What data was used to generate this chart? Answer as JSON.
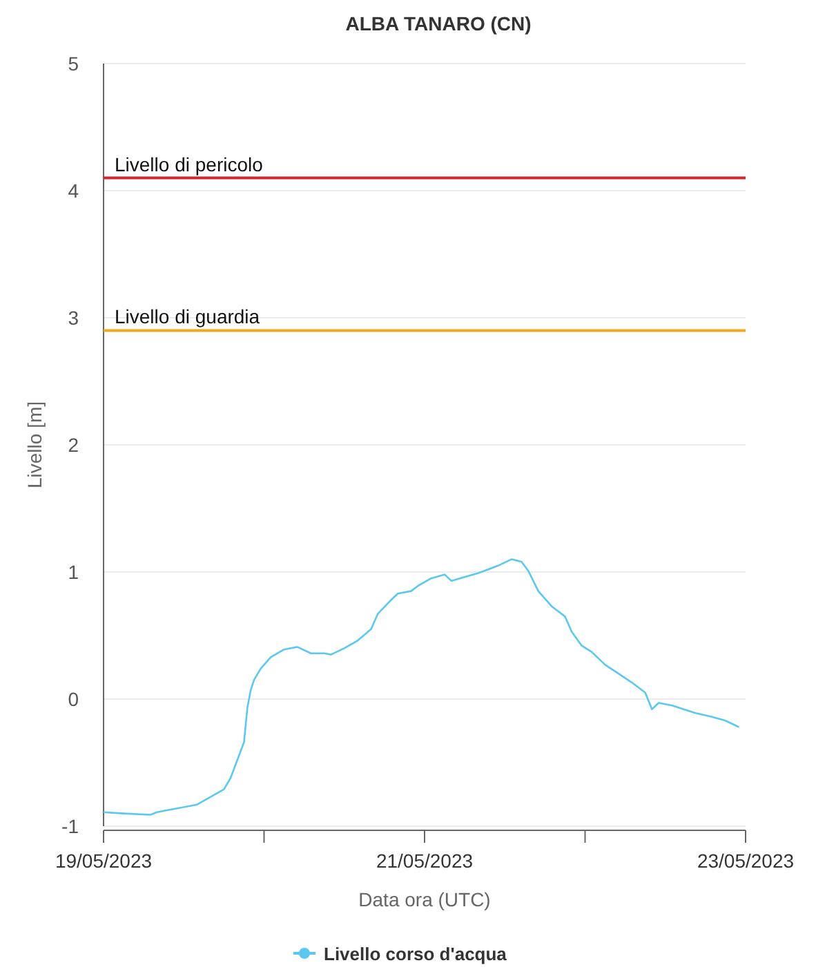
{
  "chart_data": {
    "type": "line",
    "title": "ALBA TANARO (CN)",
    "xlabel": "Data ora (UTC)",
    "ylabel": "Livello [m]",
    "x": [
      "2023-05-19T00:00",
      "2023-05-19T03:00",
      "2023-05-19T07:00",
      "2023-05-19T08:00",
      "2023-05-19T10:00",
      "2023-05-19T14:00",
      "2023-05-19T16:00",
      "2023-05-19T18:00",
      "2023-05-19T19:00",
      "2023-05-19T20:00",
      "2023-05-19T21:00",
      "2023-05-19T21:30",
      "2023-05-19T22:00",
      "2023-05-19T22:30",
      "2023-05-19T23:30",
      "2023-05-20T01:00",
      "2023-05-20T03:00",
      "2023-05-20T05:00",
      "2023-05-20T07:00",
      "2023-05-20T09:00",
      "2023-05-20T10:00",
      "2023-05-20T12:00",
      "2023-05-20T14:00",
      "2023-05-20T16:00",
      "2023-05-20T17:00",
      "2023-05-20T19:00",
      "2023-05-20T20:00",
      "2023-05-20T22:00",
      "2023-05-20T23:00",
      "2023-05-21T01:00",
      "2023-05-21T03:00",
      "2023-05-21T04:00",
      "2023-05-21T06:00",
      "2023-05-21T08:00",
      "2023-05-21T10:00",
      "2023-05-21T11:00",
      "2023-05-21T13:00",
      "2023-05-21T14:30",
      "2023-05-21T15:30",
      "2023-05-21T17:00",
      "2023-05-21T19:00",
      "2023-05-21T21:00",
      "2023-05-21T22:00",
      "2023-05-21T23:30",
      "2023-05-22T01:00",
      "2023-05-22T03:00",
      "2023-05-22T05:00",
      "2023-05-22T07:00",
      "2023-05-22T09:00",
      "2023-05-22T10:00",
      "2023-05-22T11:00",
      "2023-05-22T13:00",
      "2023-05-22T16:30",
      "2023-05-22T19:00",
      "2023-05-22T21:00",
      "2023-05-22T23:00"
    ],
    "series": [
      {
        "name": "Livello corso d'acqua",
        "color": "#5bc8ef",
        "values": [
          -0.89,
          -0.9,
          -0.91,
          -0.89,
          -0.87,
          -0.83,
          -0.77,
          -0.71,
          -0.62,
          -0.48,
          -0.34,
          -0.07,
          0.07,
          0.15,
          0.24,
          0.33,
          0.39,
          0.41,
          0.36,
          0.36,
          0.35,
          0.4,
          0.46,
          0.55,
          0.67,
          0.78,
          0.83,
          0.85,
          0.89,
          0.95,
          0.98,
          0.93,
          0.96,
          0.99,
          1.03,
          1.05,
          1.1,
          1.08,
          1.01,
          0.85,
          0.73,
          0.65,
          0.53,
          0.42,
          0.37,
          0.27,
          0.2,
          0.13,
          0.05,
          -0.08,
          -0.03,
          -0.05,
          -0.11,
          -0.14,
          -0.17,
          -0.22
        ]
      }
    ],
    "xlim": [
      "2023-05-19",
      "2023-05-23"
    ],
    "xticks": [
      {
        "value": "2023-05-19",
        "label": "19/05/2023"
      },
      {
        "value": "2023-05-20",
        "label": null
      },
      {
        "value": "2023-05-21",
        "label": "21/05/2023"
      },
      {
        "value": "2023-05-22",
        "label": null
      },
      {
        "value": "2023-05-23",
        "label": "23/05/2023"
      }
    ],
    "ylim": [
      -1,
      5
    ],
    "yticks": [
      -1,
      0,
      1,
      2,
      3,
      4,
      5
    ],
    "ref_lines": [
      {
        "axis": "y",
        "value": 4.1,
        "label": "Livello di pericolo",
        "color": "#d7262b"
      },
      {
        "axis": "y",
        "value": 2.9,
        "label": "Livello di guardia",
        "color": "#f0a81c"
      }
    ],
    "grid": "y",
    "legend": "bottom"
  }
}
